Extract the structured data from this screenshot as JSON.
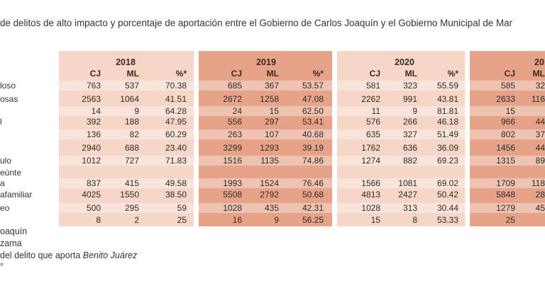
{
  "title": "de delitos de alto impacto y porcentaje de aportación entre el Gobierno de Carlos Joaquín y el Gobierno Municipal de Mar",
  "years": [
    "2018",
    "2019",
    "2020",
    "20"
  ],
  "col_headers": {
    "cj": "CJ",
    "ml": "ML",
    "pct": "%*"
  },
  "rows": [
    {
      "label": "loso",
      "v": [
        [
          "763",
          "537",
          "70.38"
        ],
        [
          "685",
          "367",
          "53.57"
        ],
        [
          "581",
          "323",
          "55.59"
        ],
        [
          "585",
          "32"
        ]
      ]
    },
    {
      "label": "osas",
      "v": [
        [
          "2563",
          "1064",
          "41.51"
        ],
        [
          "2672",
          "1258",
          "47.08"
        ],
        [
          "2262",
          "991",
          "43.81"
        ],
        [
          "2633",
          "116"
        ]
      ]
    },
    {
      "label": "",
      "v": [
        [
          "14",
          "9",
          "64.28"
        ],
        [
          "24",
          "15",
          "62.50"
        ],
        [
          "11",
          "9",
          "81.81"
        ],
        [
          "15",
          ""
        ]
      ]
    },
    {
      "label": "l",
      "v": [
        [
          "392",
          "188",
          "47.95"
        ],
        [
          "556",
          "297",
          "53.41"
        ],
        [
          "576",
          "266",
          "46.18"
        ],
        [
          "966",
          "44"
        ]
      ]
    },
    {
      "label": "",
      "v": [
        [
          "136",
          "82",
          "60.29"
        ],
        [
          "263",
          "107",
          "40.68"
        ],
        [
          "635",
          "327",
          "51.49"
        ],
        [
          "802",
          "37"
        ]
      ]
    },
    {
      "label": "",
      "v": [
        [
          "2940",
          "688",
          "23.40"
        ],
        [
          "3299",
          "1293",
          "39.19"
        ],
        [
          "1762",
          "636",
          "36.09"
        ],
        [
          "1456",
          "44"
        ]
      ]
    },
    {
      "label": "ulo",
      "v": [
        [
          "1012",
          "727",
          "71.83"
        ],
        [
          "1516",
          "1135",
          "74.86"
        ],
        [
          "1274",
          "882",
          "69.23"
        ],
        [
          "1315",
          "89"
        ]
      ]
    },
    {
      "label": "eúnte",
      "v": [
        [
          "",
          "",
          ""
        ],
        [
          "",
          "",
          ""
        ],
        [
          "",
          "",
          ""
        ],
        [
          "",
          ""
        ]
      ]
    },
    {
      "label": "a",
      "v": [
        [
          "837",
          "415",
          "49.58"
        ],
        [
          "1993",
          "1524",
          "76.46"
        ],
        [
          "1566",
          "1081",
          "69.02"
        ],
        [
          "1709",
          "118"
        ]
      ]
    },
    {
      "label": "afamiliar",
      "v": [
        [
          "4025",
          "1550",
          "38.50"
        ],
        [
          "5508",
          "2792",
          "50.68"
        ],
        [
          "4813",
          "2427",
          "50.42"
        ],
        [
          "5848",
          "28"
        ]
      ]
    },
    {
      "label": "eo",
      "v": [
        [
          "500",
          "295",
          "59"
        ],
        [
          "1028",
          "435",
          "42.31"
        ],
        [
          "1028",
          "313",
          "30.44"
        ],
        [
          "1279",
          "45"
        ]
      ]
    },
    {
      "label": "",
      "v": [
        [
          "8",
          "2",
          "25"
        ],
        [
          "16",
          "9",
          "56.25"
        ],
        [
          "15",
          "8",
          "53.33"
        ],
        [
          "25",
          ""
        ]
      ]
    }
  ],
  "footer": {
    "line1": "oaquín",
    "line2": "zama",
    "line3_prefix": "del delito que aporta ",
    "line3_italic": "Benito Juárez",
    "line4": "°"
  }
}
